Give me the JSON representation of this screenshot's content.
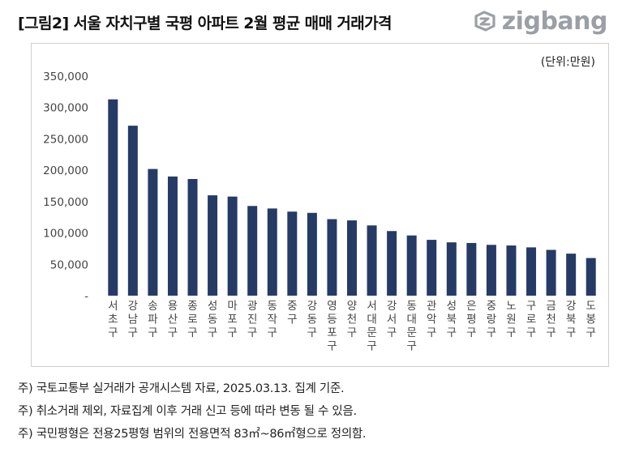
{
  "header": {
    "title": "[그림2] 서울 자치구별 국평 아파트 2월 평균 매매 거래가격",
    "logo_text": "zigbang"
  },
  "unit_label": "(단위:만원)",
  "colors": {
    "bar": "#253b66",
    "axis_text": "#444444",
    "logo": "#9aa0a6"
  },
  "chart_data": {
    "type": "bar",
    "categories": [
      "서초구",
      "강남구",
      "송파구",
      "용산구",
      "종로구",
      "성동구",
      "마포구",
      "광진구",
      "동작구",
      "중구",
      "강동구",
      "영등포구",
      "양천구",
      "서대문구",
      "강서구",
      "동대문구",
      "관악구",
      "성북구",
      "은평구",
      "중랑구",
      "노원구",
      "구로구",
      "금천구",
      "강북구",
      "도봉구"
    ],
    "values": [
      313000,
      271000,
      202000,
      190000,
      186000,
      160000,
      158000,
      143000,
      139000,
      134000,
      132000,
      122000,
      120000,
      112000,
      103000,
      96000,
      89000,
      85000,
      84000,
      81000,
      80000,
      77000,
      73000,
      67000,
      60000
    ],
    "ylim": [
      0,
      350000
    ],
    "yticks": [
      "-",
      "50,000",
      "100,000",
      "150,000",
      "200,000",
      "250,000",
      "300,000",
      "350,000"
    ],
    "grid": false,
    "legend": "none"
  },
  "notes": [
    "주) 국토교통부 실거래가 공개시스템 자료, 2025.03.13. 집계 기준.",
    "주) 취소거래 제외, 자료집계 이후 거래 신고 등에 따라 변동 될 수 있음.",
    "주) 국민평형은 전용25평형 범위의 전용면적 83㎡~86㎡형으로 정의함."
  ]
}
